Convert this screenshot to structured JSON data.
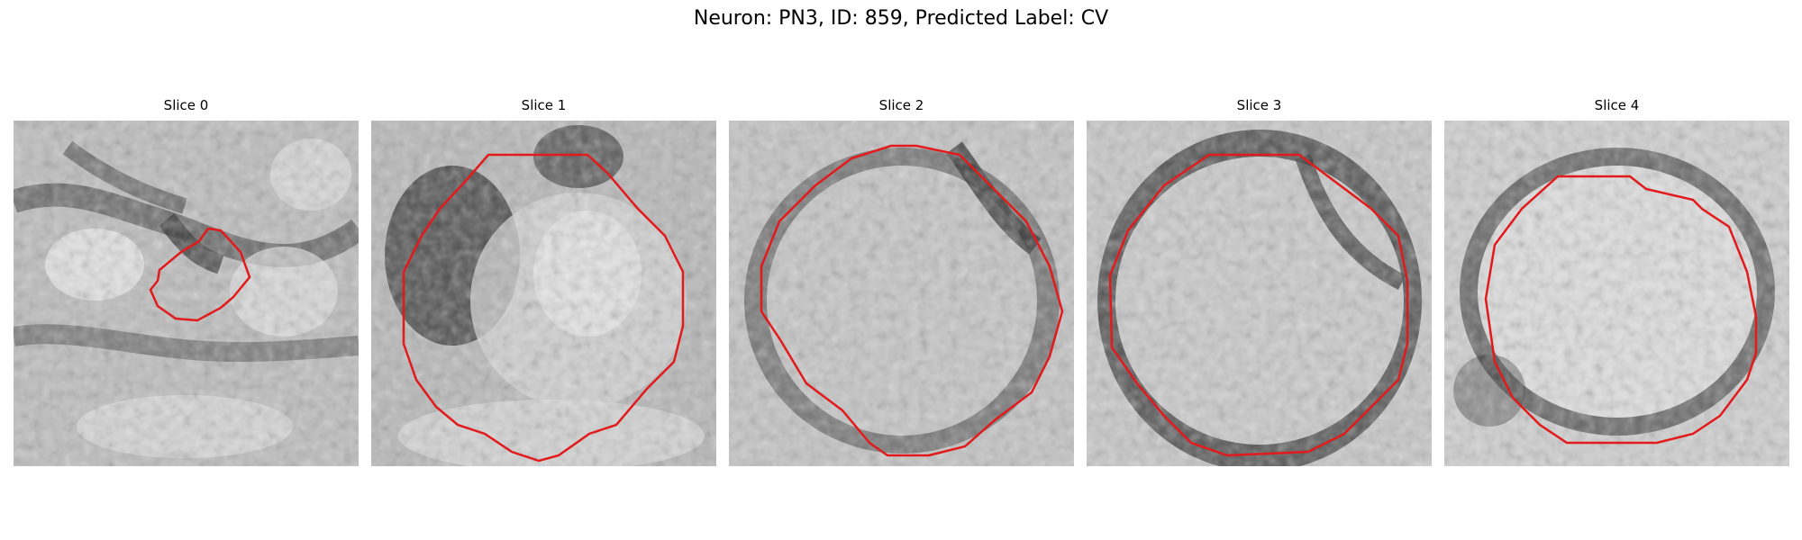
{
  "figure": {
    "title": "Neuron: PN3, ID: 859, Predicted Label: CV"
  },
  "panels": [
    {
      "title": "Slice 0"
    },
    {
      "title": "Slice 1"
    },
    {
      "title": "Slice 2"
    },
    {
      "title": "Slice 3"
    },
    {
      "title": "Slice 4"
    }
  ],
  "colors": {
    "contour": "#e31a1c",
    "dark_tissue": "#1a1a1a",
    "light_tissue": "#f2f2f2"
  }
}
